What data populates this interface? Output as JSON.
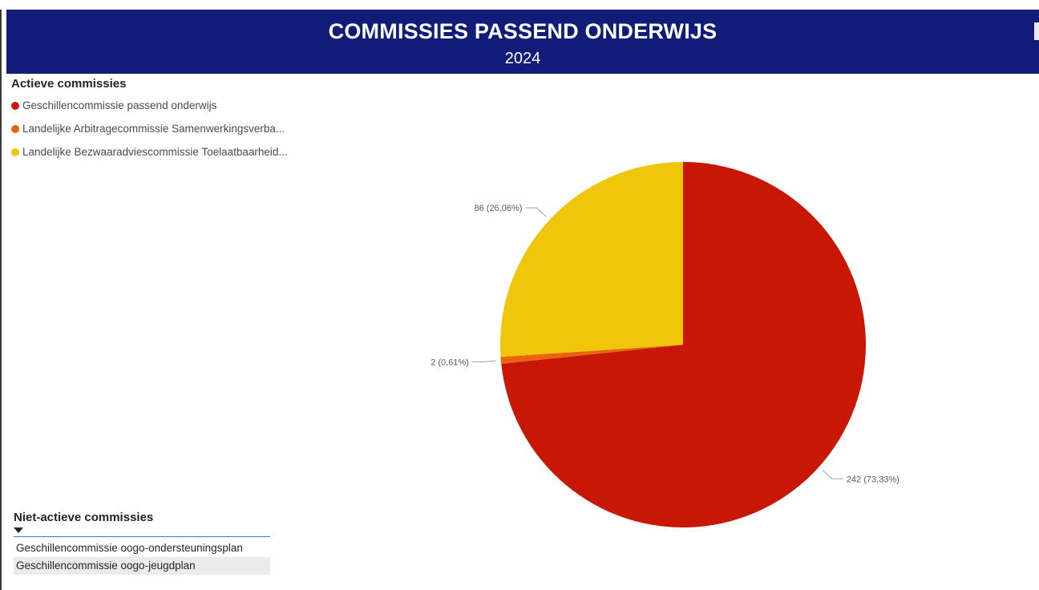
{
  "header": {
    "title": "COMMISSIES PASSEND ONDERWIJS",
    "year": "2024",
    "background": "#111c78"
  },
  "legend": {
    "title": "Actieve commissies",
    "items": [
      {
        "label": "Geschillencommissie passend onderwijs",
        "color": "#c81805"
      },
      {
        "label": "Landelijke Arbitragecommissie Samenwerkingsverba...",
        "color": "#e9640c"
      },
      {
        "label": "Landelijke Bezwaaradviescommissie Toelaatbaarheid...",
        "color": "#efc60b"
      }
    ]
  },
  "chart_data": {
    "type": "pie",
    "title": "",
    "slices": [
      {
        "name": "Geschillencommissie passend onderwijs",
        "value": 242,
        "label": "242 (73,33%)",
        "color": "#c81805"
      },
      {
        "name": "Landelijke Arbitragecommissie Samenwerkingsverba...",
        "value": 2,
        "label": "2 (0,61%)",
        "color": "#e9640c"
      },
      {
        "name": "Landelijke Bezwaaradviescommissie Toelaatbaarheid...",
        "value": 86,
        "label": "86 (26,06%)",
        "color": "#efc60b"
      }
    ],
    "legend": "top-left"
  },
  "slicer": {
    "title": "Niet-actieve commissies",
    "items": [
      "Geschillencommissie oogo-ondersteuningsplan",
      "Geschillencommissie oogo-jeugdplan"
    ]
  }
}
